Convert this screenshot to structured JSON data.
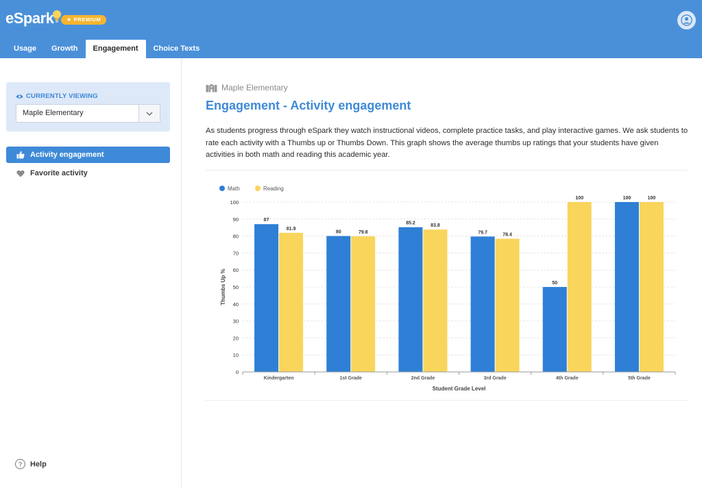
{
  "header": {
    "logo_text": "eSpark",
    "premium_label": "PREMIUM",
    "tabs": [
      {
        "label": "Usage"
      },
      {
        "label": "Growth"
      },
      {
        "label": "Engagement",
        "active": true
      },
      {
        "label": "Choice Texts"
      }
    ],
    "colors": {
      "bar": "#4a90d9",
      "premium": "#f6b530"
    }
  },
  "sidebar": {
    "viewing_label": "CURRENTLY VIEWING",
    "selected_school": "Maple Elementary",
    "items": [
      {
        "label": "Activity engagement",
        "icon": "thumbs-up-icon",
        "active": true
      },
      {
        "label": "Favorite activity",
        "icon": "heart-icon",
        "active": false
      }
    ],
    "help_label": "Help"
  },
  "main": {
    "school_name": "Maple Elementary",
    "title": "Engagement - Activity engagement",
    "description": "As students progress through eSpark they watch instructional videos, complete practice tasks, and play interactive games. We ask students to rate each activity with a Thumbs up or Thumbs  Down. This graph shows the average thumbs up ratings that your students have given activities in both math and reading this academic year."
  },
  "chart_data": {
    "type": "bar",
    "categories": [
      "Kindergarten",
      "1st Grade",
      "2nd Grade",
      "3rd Grade",
      "4th Grade",
      "5th Grade"
    ],
    "series": [
      {
        "name": "Math",
        "color": "#2f7fd6",
        "values": [
          87,
          80,
          85.2,
          79.7,
          50,
          100
        ]
      },
      {
        "name": "Reading",
        "color": "#f9d55c",
        "values": [
          81.9,
          79.8,
          83.8,
          78.4,
          100,
          100
        ]
      }
    ],
    "xlabel": "Student Grade Level",
    "ylabel": "Thumbs Up %",
    "ylim": [
      0,
      100
    ],
    "yticks": [
      0,
      10,
      20,
      30,
      40,
      50,
      60,
      70,
      80,
      90,
      100
    ],
    "grid": true,
    "legend": "top-left",
    "data_labels": true
  }
}
